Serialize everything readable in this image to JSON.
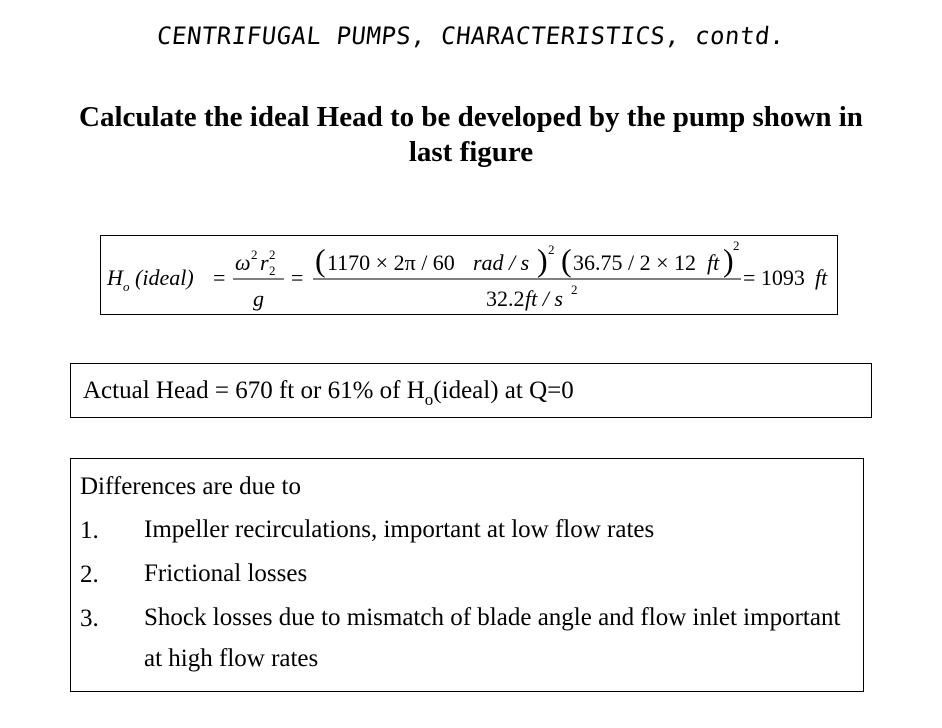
{
  "slide": {
    "title": "CENTRIFUGAL PUMPS, CHARACTERISTICS, contd.",
    "subtitle": "Calculate the ideal Head to be developed by the pump shown in last figure"
  },
  "formula": {
    "lhs_symbol": "H",
    "lhs_subscript": "o",
    "lhs_paren": "(ideal)",
    "equals": "=",
    "omega": "ω",
    "r": "r",
    "sup2": "2",
    "sub2": "2",
    "g": "g",
    "numer_a": "1170 × 2π / 60",
    "numer_a_units": "rad / s",
    "numer_b": "36.75 / 2 × 12",
    "numer_b_units": "ft",
    "denom": "32.2",
    "denom_units": "ft / s",
    "result": "= 1093",
    "result_units": "ft"
  },
  "actual": {
    "text_before": "Actual Head = 670 ft or 61% of H",
    "sub": "o",
    "text_after": "(ideal) at Q=0"
  },
  "differences": {
    "heading": "Differences are due to",
    "items": [
      {
        "num": "1.",
        "text": "Impeller recirculations, important at low flow rates"
      },
      {
        "num": "2.",
        "text": "Frictional losses"
      },
      {
        "num": "3.",
        "text": "Shock losses due to mismatch of blade angle and flow inlet important at high flow rates"
      }
    ]
  }
}
